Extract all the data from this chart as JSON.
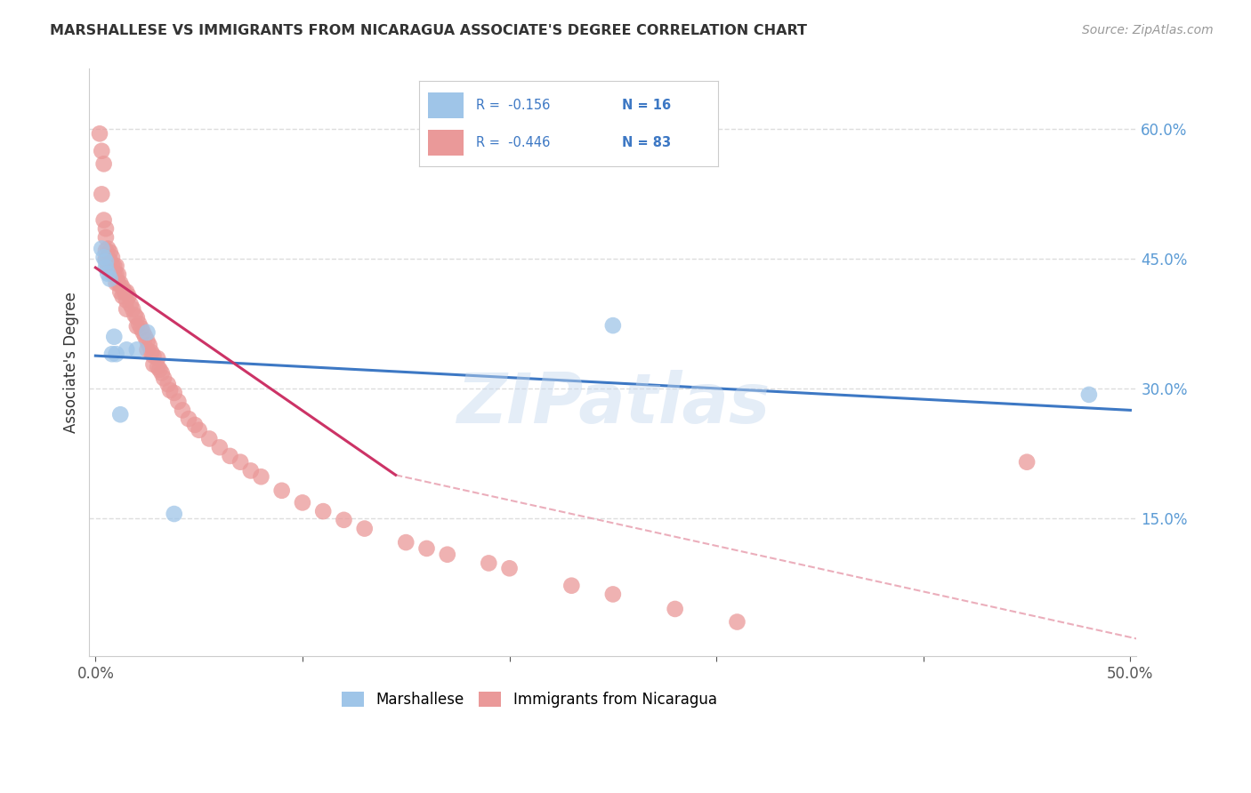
{
  "title": "MARSHALLESE VS IMMIGRANTS FROM NICARAGUA ASSOCIATE'S DEGREE CORRELATION CHART",
  "source": "Source: ZipAtlas.com",
  "ylabel": "Associate's Degree",
  "xlim": [
    0.0,
    0.5
  ],
  "ylim": [
    0.0,
    0.65
  ],
  "legend_r1": "-0.156",
  "legend_n1": "16",
  "legend_r2": "-0.446",
  "legend_n2": "83",
  "color_blue": "#9fc5e8",
  "color_pink": "#ea9999",
  "color_blue_line": "#3d78c4",
  "color_pink_line": "#cc3366",
  "color_dashed": "#e8a0b0",
  "blue_points_x": [
    0.003,
    0.004,
    0.005,
    0.005,
    0.006,
    0.007,
    0.008,
    0.009,
    0.01,
    0.012,
    0.015,
    0.02,
    0.025,
    0.038,
    0.25,
    0.48
  ],
  "blue_points_y": [
    0.462,
    0.452,
    0.447,
    0.44,
    0.433,
    0.427,
    0.34,
    0.36,
    0.34,
    0.27,
    0.345,
    0.345,
    0.365,
    0.155,
    0.373,
    0.293
  ],
  "pink_points_x": [
    0.002,
    0.003,
    0.003,
    0.004,
    0.004,
    0.005,
    0.005,
    0.005,
    0.005,
    0.006,
    0.006,
    0.006,
    0.007,
    0.007,
    0.007,
    0.008,
    0.008,
    0.008,
    0.009,
    0.009,
    0.01,
    0.01,
    0.01,
    0.011,
    0.011,
    0.012,
    0.012,
    0.013,
    0.013,
    0.014,
    0.015,
    0.015,
    0.015,
    0.016,
    0.017,
    0.018,
    0.019,
    0.02,
    0.02,
    0.021,
    0.022,
    0.023,
    0.024,
    0.025,
    0.025,
    0.026,
    0.027,
    0.028,
    0.028,
    0.03,
    0.03,
    0.031,
    0.032,
    0.033,
    0.035,
    0.036,
    0.038,
    0.04,
    0.042,
    0.045,
    0.048,
    0.05,
    0.055,
    0.06,
    0.065,
    0.07,
    0.075,
    0.08,
    0.09,
    0.1,
    0.11,
    0.12,
    0.13,
    0.15,
    0.16,
    0.17,
    0.19,
    0.2,
    0.23,
    0.25,
    0.28,
    0.31,
    0.45
  ],
  "pink_points_y": [
    0.595,
    0.575,
    0.525,
    0.56,
    0.495,
    0.485,
    0.475,
    0.46,
    0.45,
    0.462,
    0.452,
    0.44,
    0.458,
    0.448,
    0.44,
    0.452,
    0.443,
    0.433,
    0.442,
    0.432,
    0.442,
    0.432,
    0.422,
    0.432,
    0.422,
    0.422,
    0.412,
    0.417,
    0.407,
    0.412,
    0.412,
    0.402,
    0.392,
    0.407,
    0.397,
    0.392,
    0.385,
    0.382,
    0.372,
    0.375,
    0.37,
    0.365,
    0.36,
    0.355,
    0.345,
    0.35,
    0.342,
    0.338,
    0.328,
    0.335,
    0.325,
    0.322,
    0.318,
    0.312,
    0.305,
    0.298,
    0.295,
    0.285,
    0.275,
    0.265,
    0.258,
    0.252,
    0.242,
    0.232,
    0.222,
    0.215,
    0.205,
    0.198,
    0.182,
    0.168,
    0.158,
    0.148,
    0.138,
    0.122,
    0.115,
    0.108,
    0.098,
    0.092,
    0.072,
    0.062,
    0.045,
    0.03,
    0.215
  ],
  "blue_line_x": [
    0.0,
    0.5
  ],
  "blue_line_y": [
    0.338,
    0.275
  ],
  "pink_line_x": [
    0.0,
    0.145
  ],
  "pink_line_y": [
    0.44,
    0.2
  ],
  "dashed_line_x": [
    0.145,
    0.92
  ],
  "dashed_line_y": [
    0.2,
    -0.21
  ],
  "watermark_text": "ZIPatlas",
  "background_color": "#ffffff",
  "grid_color": "#dddddd",
  "right_ytick_vals": [
    0.6,
    0.45,
    0.3,
    0.15
  ],
  "right_ytick_labels": [
    "60.0%",
    "45.0%",
    "30.0%",
    "15.0%"
  ]
}
